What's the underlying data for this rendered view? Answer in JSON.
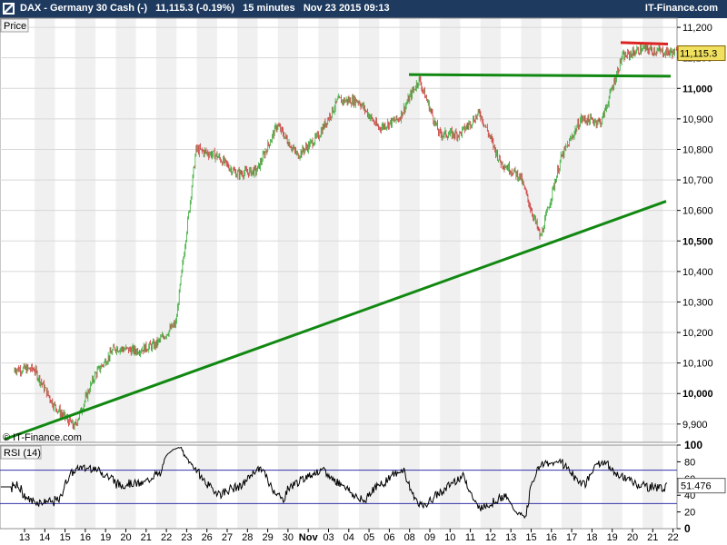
{
  "header": {
    "title": "DAX - Germany 30 Cash (-)",
    "last": "11,115.3 (-0.19%)",
    "interval": "15 minutes",
    "datetime": "Nov 23 2015 09:13",
    "brand": "IT-Finance.com"
  },
  "price_panel": {
    "label": "Price",
    "watermark": "© IT-Finance.com",
    "last_value": "11,115.3",
    "axis_labels": [
      "11,200",
      "11,100",
      "11,000",
      "10,900",
      "10,800",
      "10,700",
      "10,600",
      "10,500",
      "10,400",
      "10,300",
      "10,200",
      "10,100",
      "10,000",
      "9,900"
    ],
    "bold_labels": [
      "11,000",
      "10,500",
      "10,000"
    ]
  },
  "rsi_panel": {
    "label": "RSI (14)",
    "last_value": "51.476",
    "axis_labels": [
      "100",
      "80",
      "60",
      "40",
      "20",
      "0"
    ],
    "bold_labels": [
      "100",
      "0"
    ],
    "overbought": 70,
    "oversold": 30
  },
  "x_axis": {
    "labels": [
      "13",
      "14",
      "15",
      "16",
      "19",
      "20",
      "21",
      "22",
      "23",
      "26",
      "27",
      "28",
      "29",
      "30",
      "Nov",
      "03",
      "04",
      "05",
      "06",
      "08",
      "09",
      "10",
      "11",
      "12",
      "13",
      "15",
      "16",
      "17",
      "18",
      "19",
      "20",
      "21",
      "22"
    ]
  },
  "colors": {
    "header_bg": "#1e3a5f",
    "up_candle": "#33aa33",
    "down_candle": "#cc3333",
    "trendline": "#118811",
    "resistance": "#dd2222",
    "rsi_line": "#000000",
    "rsi_level": "#3333aa",
    "last_price_box": "#f0e060"
  },
  "chart_data": [
    {
      "type": "candlestick",
      "title": "DAX - Germany 30 Cash (-)",
      "interval": "15 minutes",
      "ylim": [
        9840,
        11230
      ],
      "x": [
        "13",
        "14",
        "15",
        "16",
        "19",
        "20",
        "21",
        "22",
        "23",
        "26",
        "27",
        "28",
        "29",
        "30",
        "Nov",
        "03",
        "04",
        "05",
        "06",
        "08",
        "09",
        "10",
        "11",
        "12",
        "13",
        "15",
        "16",
        "17",
        "18",
        "19",
        "20",
        "21",
        "22"
      ],
      "session_close": [
        10080,
        9960,
        9890,
        10060,
        10150,
        10140,
        10160,
        10230,
        10800,
        10780,
        10720,
        10730,
        10880,
        10780,
        10840,
        10960,
        10960,
        10870,
        10900,
        11030,
        10850,
        10850,
        10920,
        10760,
        10710,
        10510,
        10770,
        10900,
        10890,
        11100,
        11130,
        11120,
        11115
      ],
      "last": 11115.3,
      "lines": [
        {
          "name": "",
          "from": [
            "13",
            9850
          ],
          "to": [
            "22",
            10630
          ]
        },
        {
          "name": "",
          "from": [
            "06",
            11045
          ],
          "to": [
            "22",
            11040
          ]
        },
        {
          "name": "",
          "from": [
            "19",
            11150
          ],
          "to": [
            "22",
            11145
          ]
        }
      ]
    },
    {
      "type": "line",
      "title": "RSI (14)",
      "ylim": [
        0,
        100
      ],
      "levels": [
        70,
        30
      ],
      "last": 51.476
    }
  ]
}
